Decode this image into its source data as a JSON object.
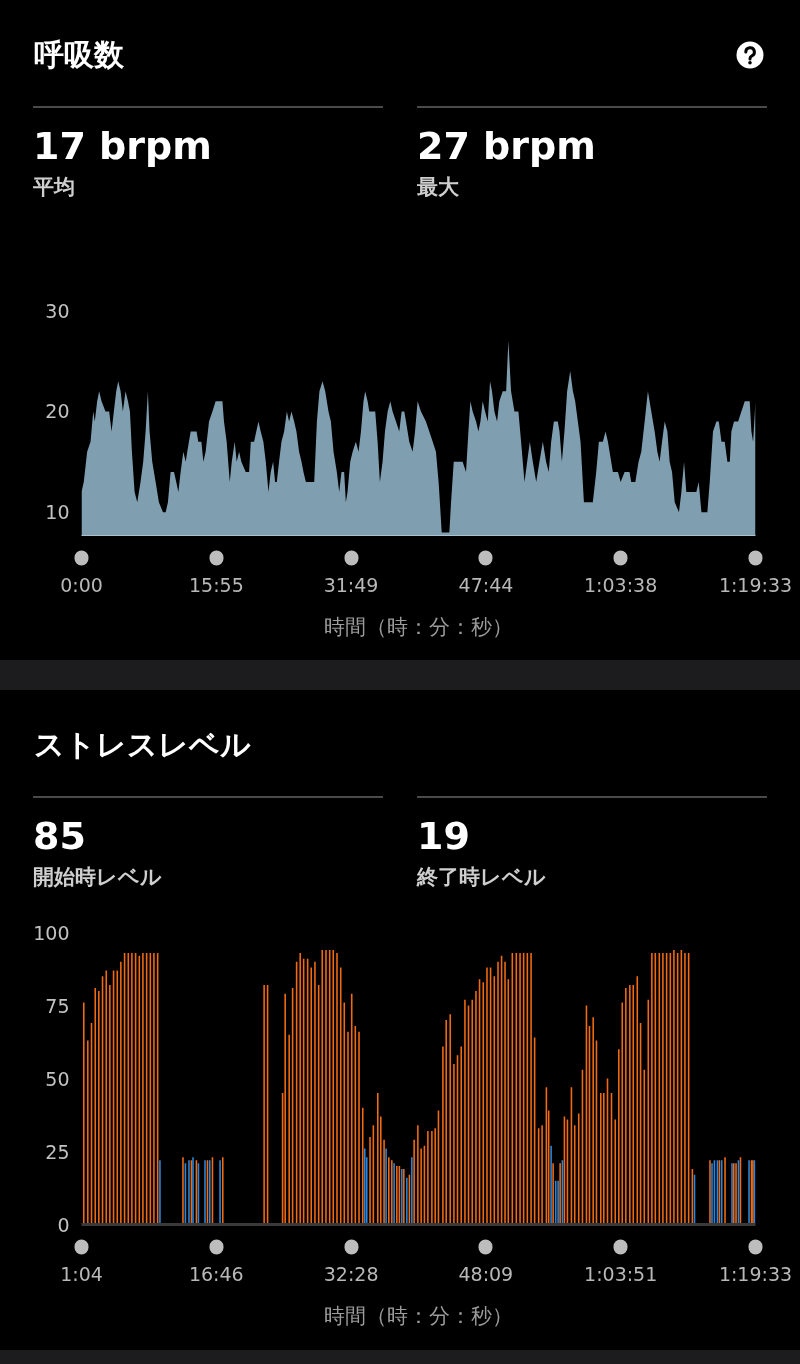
{
  "chart_data": [
    {
      "type": "area",
      "title": "呼吸数",
      "annotations": [
        "17 brpm",
        "平均",
        "27 brpm",
        "最大"
      ],
      "xlabel": "時間（時：分：秒）",
      "color": "#7f9eb0",
      "x": [
        0,
        16,
        40,
        64,
        83,
        94,
        111,
        125,
        142,
        170,
        196,
        213,
        229,
        246,
        260,
        277,
        293,
        312,
        329,
        343,
        357,
        376,
        395,
        418,
        437,
        454,
        470,
        482,
        501,
        525,
        548,
        577,
        596,
        612,
        631,
        655,
        671,
        686,
        702,
        721,
        738,
        749,
        773,
        815,
        827,
        849,
        863,
        879,
        903,
        927,
        950,
        998,
        1009,
        1028,
        1050,
        1064,
        1085,
        1099,
        1116,
        1132,
        1163,
        1187,
        1199,
        1222,
        1253,
        1269,
        1288,
        1305,
        1324,
        1340,
        1357,
        1371,
        1383,
        1399,
        1416,
        1435,
        1454,
        1470,
        1487,
        1506,
        1522,
        1541,
        1558,
        1572,
        1589,
        1648,
        1667,
        1685,
        1707,
        1726,
        1749,
        1766,
        1785,
        1808,
        1825,
        1841,
        1860,
        1872,
        1884,
        1903,
        1920,
        1943,
        1962,
        1979,
        1997,
        2009,
        2026,
        2038,
        2080,
        2097,
        2113,
        2132,
        2149,
        2168,
        2187,
        2203,
        2227,
        2250,
        2267,
        2286,
        2298,
        2321,
        2345,
        2362,
        2380,
        2404,
        2439,
        2463,
        2487,
        2510,
        2529,
        2551,
        2605,
        2617,
        2636,
        2699,
        2723,
        2740,
        2754,
        2770,
        2794,
        2811,
        2825,
        2841,
        2858,
        2877,
        2893,
        2907,
        2924,
        2943,
        2959,
        2983,
        3007,
        3023,
        3042,
        3066,
        3094,
        3113,
        3137,
        3156,
        3175,
        3196,
        3220,
        3243,
        3267,
        3290,
        3309,
        3326,
        3345,
        3373,
        3385,
        3402,
        3420,
        3439,
        3461,
        3480,
        3496,
        3515,
        3534,
        3558,
        3621,
        3645,
        3664,
        3692,
        3711,
        3728,
        3763,
        3799,
        3818,
        3846,
        3881,
        3893,
        3922,
        3945,
        3964,
        3988,
        4011,
        4035,
        4059,
        4078,
        4094,
        4111,
        4130,
        4149,
        4165,
        4182,
        4201,
        4231,
        4248,
        4267,
        4283,
        4354,
        4371,
        4390,
        4432,
        4449,
        4472,
        4496,
        4513,
        4532,
        4555,
        4574,
        4591,
        4602,
        4621,
        4650,
        4673,
        4697,
        4732,
        4744,
        4756,
        4773
      ],
      "values": [
        12,
        13,
        16,
        17,
        20,
        19,
        21,
        22,
        21,
        20,
        20,
        18,
        20,
        22,
        23,
        22,
        20,
        22,
        21,
        20,
        16,
        12,
        11,
        13,
        15,
        18,
        22,
        18,
        15,
        13,
        11,
        10,
        10,
        11,
        14,
        14,
        13,
        12,
        14,
        16,
        15,
        16,
        18,
        18,
        17,
        17,
        15,
        16,
        19,
        20,
        21,
        21,
        19,
        17,
        13,
        15,
        17,
        15,
        16,
        15,
        14,
        14,
        17,
        17,
        19,
        18,
        17,
        15,
        12,
        14,
        15,
        13,
        13,
        15,
        17,
        18,
        20,
        19,
        20,
        19,
        18,
        16,
        15,
        14,
        13,
        13,
        19,
        22,
        23,
        22,
        20,
        19,
        16,
        14,
        12,
        14,
        14,
        11,
        12,
        15,
        16,
        17,
        16,
        18,
        21,
        22,
        21,
        20,
        20,
        17,
        13,
        15,
        18,
        20,
        21,
        20,
        19,
        18,
        20,
        20,
        19,
        17,
        16,
        18,
        21,
        20,
        19,
        18,
        17,
        16,
        13,
        8,
        8,
        11,
        15,
        15,
        14,
        18,
        21,
        20,
        19,
        18,
        19,
        21,
        20,
        19,
        23,
        22,
        20,
        19,
        21,
        22,
        22,
        27,
        22,
        20,
        20,
        17,
        13,
        15,
        17,
        15,
        13,
        15,
        17,
        15,
        14,
        17,
        19,
        19,
        18,
        15,
        18,
        22,
        24,
        22,
        21,
        19,
        17,
        11,
        11,
        14,
        17,
        17,
        18,
        17,
        14,
        14,
        13,
        14,
        14,
        13,
        13,
        15,
        16,
        19,
        22,
        20,
        18,
        16,
        15,
        17,
        19,
        18,
        15,
        14,
        11,
        10,
        12,
        15,
        12,
        12,
        13,
        10,
        10,
        13,
        18,
        19,
        19,
        17,
        17,
        15,
        15,
        18,
        19,
        19,
        20,
        21,
        21,
        18,
        17,
        21
      ],
      "xlim": [
        0,
        4773
      ],
      "xticks": [
        {
          "value": 0,
          "label": "0:00"
        },
        {
          "value": 955,
          "label": "15:55"
        },
        {
          "value": 1909,
          "label": "31:49"
        },
        {
          "value": 2864,
          "label": "47:44"
        },
        {
          "value": 3818,
          "label": "1:03:38"
        },
        {
          "value": 4773,
          "label": "1:19:33"
        }
      ],
      "ylim": [
        7.7,
        30
      ],
      "yticks": [
        10,
        20,
        30
      ]
    },
    {
      "type": "bar",
      "title": "ストレスレベル",
      "annotations": [
        "85",
        "開始時レベル",
        "19",
        "終了時レベル"
      ],
      "xlabel": "時間（時：分：秒）",
      "series": [
        {
          "color": "#f26b12",
          "x": [
            80,
            108,
            134,
            160,
            185,
            211,
            237,
            262,
            288,
            314,
            339,
            365,
            391,
            416,
            442,
            468,
            493,
            519,
            545,
            570,
            596,
            773,
            832,
            867,
            944,
            979,
            1051,
            1340,
            1364,
            1469,
            1487,
            1515,
            1539,
            1567,
            1592,
            1616,
            1644,
            1669,
            1695,
            1721,
            1746,
            1772,
            1798,
            1823,
            1849,
            1875,
            1900,
            1926,
            1952,
            1977,
            2003,
            2029,
            2080,
            2103,
            2134,
            2155,
            2178,
            2211,
            2232,
            2267,
            2285,
            2316,
            2355,
            2388,
            2414,
            2437,
            2460,
            2484,
            2512,
            2535,
            2558,
            2589,
            2612,
            2640,
            2666,
            2691,
            2717,
            2743,
            2768,
            2794,
            2820,
            2845,
            2871,
            2897,
            2922,
            2948,
            2974,
            2999,
            3023,
            3046,
            3074,
            3102,
            3128,
            3153,
            3179,
            3205,
            3230,
            3258,
            3282,
            3312,
            3328,
            3359,
            3408,
            3438,
            3459,
            3487,
            3510,
            3538,
            3564,
            3592,
            3613,
            3639,
            3662,
            3692,
            3713,
            3739,
            3767,
            3793,
            3818,
            3842,
            3867,
            3895,
            3919,
            3947,
            3970,
            3996,
            4024,
            4049,
            4073,
            4101,
            4126,
            4152,
            4178,
            4203,
            4229,
            4255,
            4280,
            4306,
            4332,
            4455,
            4521,
            4560,
            4621,
            4637,
            4668,
            4745,
            4755
          ],
          "values": [
            76,
            63,
            69,
            81,
            80,
            85,
            87,
            82,
            87,
            87,
            90,
            93,
            93,
            93,
            93,
            92,
            93,
            93,
            93,
            93,
            93,
            23,
            22,
            22,
            22,
            23,
            23,
            82,
            82,
            45,
            79,
            65,
            81,
            90,
            93,
            91,
            91,
            88,
            90,
            82,
            94,
            94,
            94,
            94,
            93,
            88,
            76,
            66,
            79,
            68,
            66,
            40,
            30,
            34,
            45,
            37,
            29,
            23,
            22,
            20,
            20,
            19,
            17,
            29,
            34,
            26,
            27,
            32,
            32,
            33,
            39,
            61,
            70,
            72,
            55,
            58,
            61,
            77,
            75,
            77,
            80,
            84,
            83,
            88,
            88,
            85,
            90,
            92,
            90,
            84,
            93,
            93,
            93,
            93,
            93,
            93,
            64,
            33,
            34,
            47,
            39,
            21,
            21,
            37,
            36,
            47,
            34,
            38,
            53,
            75,
            68,
            71,
            63,
            45,
            45,
            50,
            45,
            36,
            60,
            76,
            81,
            82,
            82,
            85,
            69,
            53,
            77,
            93,
            93,
            93,
            93,
            93,
            93,
            94,
            93,
            94,
            93,
            93,
            19,
            22,
            22,
            23,
            21,
            21,
            23,
            22,
            22
          ]
        },
        {
          "color": "#2b87df",
          "x": [
            612,
            790,
            815,
            843,
            881,
            927,
            960,
            1032,
            2043,
            2057,
            2192,
            2248,
            2302,
            2337,
            2372,
            3345,
            3377,
            3394,
            3424,
            4347,
            4469,
            4486,
            4507,
            4537,
            4609,
            4654,
            4728,
            4766
          ],
          "values": [
            22,
            21,
            22,
            23,
            21,
            22,
            22,
            22,
            26,
            23,
            26,
            21,
            19,
            16,
            23,
            27,
            15,
            15,
            22,
            17,
            21,
            22,
            22,
            22,
            21,
            22,
            22,
            22
          ]
        }
      ],
      "xlim": [
        64,
        4773
      ],
      "xticks": [
        {
          "value": 64,
          "label": "1:04"
        },
        {
          "value": 1006,
          "label": "16:46"
        },
        {
          "value": 1948,
          "label": "32:28"
        },
        {
          "value": 2889,
          "label": "48:09"
        },
        {
          "value": 3831,
          "label": "1:03:51"
        },
        {
          "value": 4773,
          "label": "1:19:33"
        }
      ],
      "ylim": [
        0,
        100
      ],
      "yticks": [
        0,
        25,
        50,
        75,
        100
      ]
    }
  ]
}
